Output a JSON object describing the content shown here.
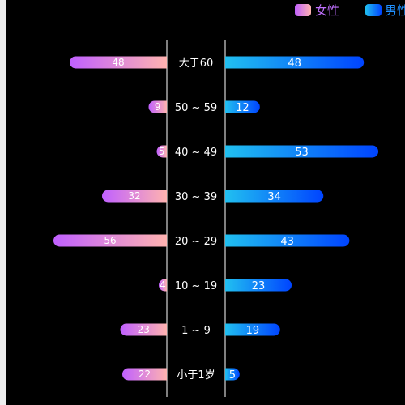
{
  "chart_data": {
    "type": "bar",
    "orientation": "horizontal-butterfly",
    "title": "",
    "categories": [
      "大于60",
      "50 ~ 59",
      "40 ~ 49",
      "30 ~ 39",
      "20 ~ 29",
      "10 ~ 19",
      "1 ~ 9",
      "小于1岁"
    ],
    "series": [
      {
        "name": "女性",
        "side": "left",
        "values": [
          48,
          9,
          5,
          32,
          56,
          4,
          23,
          22
        ],
        "gradient": [
          "#c060ff",
          "#ffb3b0"
        ]
      },
      {
        "name": "男性",
        "side": "right",
        "values": [
          48,
          12,
          53,
          34,
          43,
          23,
          19,
          5
        ],
        "gradient": [
          "#21c0f0",
          "#0044ff"
        ]
      }
    ],
    "legend_position": "top-right",
    "grid": false
  }
}
